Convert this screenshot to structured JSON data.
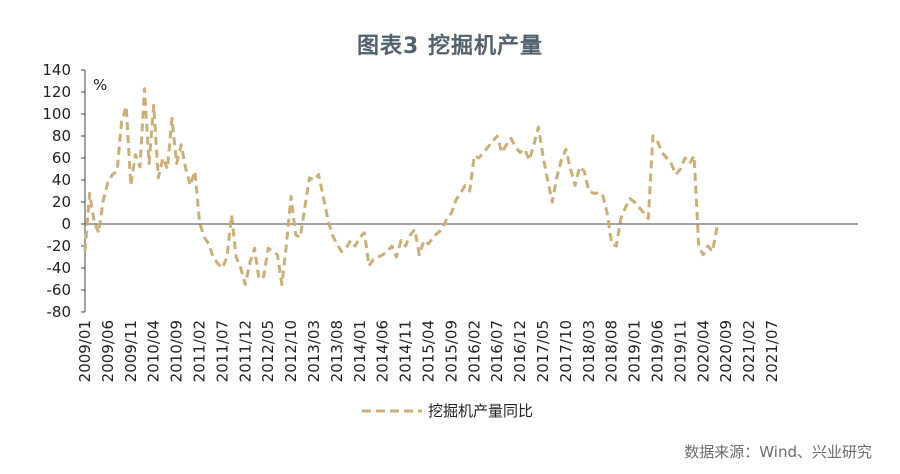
{
  "chart_data": {
    "type": "line",
    "title": "图表3  挖掘机产量",
    "ylabel": "%",
    "ylim": [
      -80,
      140
    ],
    "yticks": [
      140,
      120,
      100,
      80,
      60,
      40,
      20,
      0,
      -20,
      -40,
      -60,
      -80
    ],
    "xticks": [
      "2009/01",
      "2009/06",
      "2009/11",
      "2010/04",
      "2010/09",
      "2011/02",
      "2011/07",
      "2011/12",
      "2012/05",
      "2012/10",
      "2013/03",
      "2013/08",
      "2014/01",
      "2014/06",
      "2014/11",
      "2015/04",
      "2015/09",
      "2016/02",
      "2016/07",
      "2016/12",
      "2017/05",
      "2017/10",
      "2018/03",
      "2018/08",
      "2019/01",
      "2019/06",
      "2019/11",
      "2020/04",
      "2020/09",
      "2021/02",
      "2021/07"
    ],
    "grid": false,
    "legend_position": "bottom",
    "line_color": "#c9b07a",
    "line_style": "dashed",
    "series": [
      {
        "name": "挖掘机产量同比",
        "values": [
          -25,
          28,
          2,
          -8,
          22,
          38,
          45,
          48,
          93,
          107,
          35,
          63,
          52,
          123,
          55,
          108,
          42,
          60,
          50,
          96,
          55,
          72,
          50,
          35,
          48,
          2,
          -12,
          -18,
          -30,
          -36,
          -40,
          -30,
          8,
          -30,
          -40,
          -55,
          -35,
          -22,
          -50,
          -48,
          -22,
          -25,
          -28,
          -55,
          -18,
          25,
          -10,
          -12,
          15,
          42,
          40,
          45,
          25,
          5,
          -10,
          -18,
          -25,
          -22,
          -15,
          -20,
          -12,
          -8,
          -38,
          -32,
          -30,
          -28,
          -25,
          -20,
          -30,
          -15,
          -20,
          -10,
          -5,
          -28,
          -15,
          -18,
          -12,
          -8,
          -5,
          5,
          10,
          22,
          28,
          35,
          30,
          62,
          60,
          65,
          70,
          75,
          80,
          65,
          72,
          78,
          70,
          65,
          68,
          58,
          72,
          88,
          62,
          40,
          20,
          42,
          58,
          68,
          50,
          35,
          52,
          48,
          30,
          28,
          28,
          27,
          10,
          -18,
          -20,
          5,
          15,
          23,
          20,
          15,
          10,
          5,
          80,
          75,
          65,
          60,
          55,
          45,
          50,
          60,
          55,
          62,
          -20,
          -28,
          -20,
          -25,
          -3
        ]
      }
    ]
  },
  "source": "数据来源：Wind、兴业研究"
}
